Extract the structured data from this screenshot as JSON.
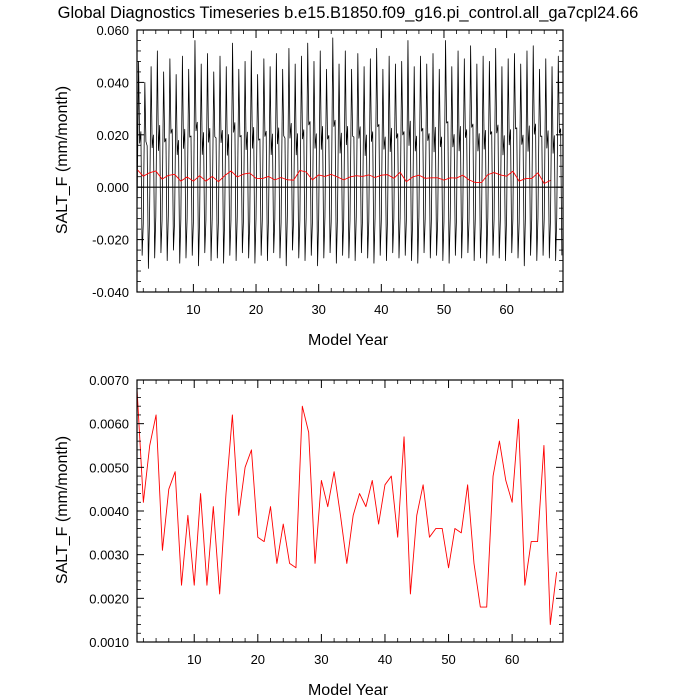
{
  "page_title": "Global Diagnostics Timeseries b.e15.B1850.f09_g16.pi_control.all_ga7cpl24.66",
  "chart_data": [
    {
      "type": "line",
      "xlabel": "Model Year",
      "ylabel": "SALT_F (mm/month)",
      "xlim": [
        1,
        69
      ],
      "ylim": [
        -0.04,
        0.06
      ],
      "x_ticks": [
        10,
        20,
        30,
        40,
        50,
        60
      ],
      "x_tick_labels": [
        "10",
        "20",
        "30",
        "40",
        "50",
        "60"
      ],
      "y_ticks": [
        -0.04,
        -0.02,
        0.0,
        0.02,
        0.04,
        0.06
      ],
      "y_tick_labels": [
        "-0.040",
        "-0.020",
        "0.000",
        "0.020",
        "0.040",
        "0.060"
      ],
      "zero_line": true,
      "series": [
        {
          "color": "#000000",
          "style": "monthly",
          "monthly_max": [
            0.048,
            0.04,
            0.046,
            0.052,
            0.044,
            0.049,
            0.043,
            0.05,
            0.045,
            0.056,
            0.047,
            0.051,
            0.044,
            0.05,
            0.046,
            0.055,
            0.045,
            0.048,
            0.052,
            0.043,
            0.049,
            0.046,
            0.051,
            0.045,
            0.053,
            0.047,
            0.05,
            0.055,
            0.048,
            0.052,
            0.045,
            0.057,
            0.047,
            0.052,
            0.045,
            0.051,
            0.046,
            0.049,
            0.053,
            0.045,
            0.05,
            0.047,
            0.048,
            0.056,
            0.046,
            0.05,
            0.047,
            0.051,
            0.045,
            0.056,
            0.046,
            0.052,
            0.049,
            0.054,
            0.047,
            0.05,
            0.048,
            0.053,
            0.046,
            0.049,
            0.051,
            0.047,
            0.052,
            0.054,
            0.045,
            0.049,
            0.046,
            0.05
          ],
          "monthly_min": [
            -0.026,
            -0.031,
            -0.027,
            -0.025,
            -0.028,
            -0.024,
            -0.029,
            -0.027,
            -0.026,
            -0.03,
            -0.025,
            -0.028,
            -0.027,
            -0.029,
            -0.026,
            -0.028,
            -0.025,
            -0.027,
            -0.029,
            -0.026,
            -0.028,
            -0.025,
            -0.027,
            -0.03,
            -0.024,
            -0.027,
            -0.028,
            -0.026,
            -0.03,
            -0.027,
            -0.025,
            -0.029,
            -0.026,
            -0.027,
            -0.028,
            -0.025,
            -0.027,
            -0.029,
            -0.026,
            -0.028,
            -0.025,
            -0.027,
            -0.026,
            -0.028,
            -0.029,
            -0.025,
            -0.027,
            -0.026,
            -0.028,
            -0.029,
            -0.026,
            -0.027,
            -0.025,
            -0.028,
            -0.027,
            -0.029,
            -0.026,
            -0.027,
            -0.028,
            -0.025,
            -0.027,
            -0.03,
            -0.026,
            -0.028,
            -0.026,
            -0.027,
            -0.028,
            -0.026
          ]
        },
        {
          "color": "#ff0000",
          "style": "annual",
          "values": [
            0.0068,
            0.0042,
            0.0055,
            0.0062,
            0.0031,
            0.0045,
            0.0049,
            0.0023,
            0.0039,
            0.0023,
            0.0044,
            0.0023,
            0.0041,
            0.0021,
            0.0044,
            0.0062,
            0.0039,
            0.005,
            0.0054,
            0.0034,
            0.0033,
            0.0041,
            0.0028,
            0.0037,
            0.0028,
            0.0027,
            0.0064,
            0.0058,
            0.0028,
            0.0047,
            0.0041,
            0.0049,
            0.0039,
            0.0028,
            0.0039,
            0.0044,
            0.0041,
            0.0047,
            0.0037,
            0.0046,
            0.0048,
            0.0034,
            0.0057,
            0.0021,
            0.0039,
            0.0046,
            0.0034,
            0.0036,
            0.0036,
            0.0027,
            0.0036,
            0.0035,
            0.0046,
            0.0028,
            0.0018,
            0.0018,
            0.0048,
            0.0056,
            0.0047,
            0.0042,
            0.0061,
            0.0023,
            0.0033,
            0.0033,
            0.0055,
            0.0014,
            0.0026
          ]
        }
      ]
    },
    {
      "type": "line",
      "xlabel": "Model Year",
      "ylabel": "SALT_F (mm/month)",
      "xlim": [
        1,
        68
      ],
      "ylim": [
        0.001,
        0.007
      ],
      "x_ticks": [
        10,
        20,
        30,
        40,
        50,
        60
      ],
      "x_tick_labels": [
        "10",
        "20",
        "30",
        "40",
        "50",
        "60"
      ],
      "y_ticks": [
        0.001,
        0.002,
        0.003,
        0.004,
        0.005,
        0.006,
        0.007
      ],
      "y_tick_labels": [
        "0.0010",
        "0.0020",
        "0.0030",
        "0.0040",
        "0.0050",
        "0.0060",
        "0.0070"
      ],
      "series": [
        {
          "color": "#ff0000",
          "x": [
            1,
            2,
            3,
            4,
            5,
            6,
            7,
            8,
            9,
            10,
            11,
            12,
            13,
            14,
            15,
            16,
            17,
            18,
            19,
            20,
            21,
            22,
            23,
            24,
            25,
            26,
            27,
            28,
            29,
            30,
            31,
            32,
            33,
            34,
            35,
            36,
            37,
            38,
            39,
            40,
            41,
            42,
            43,
            44,
            45,
            46,
            47,
            48,
            49,
            50,
            51,
            52,
            53,
            54,
            55,
            56,
            57,
            58,
            59,
            60,
            61,
            62,
            63,
            64,
            65,
            66,
            67
          ],
          "values": [
            0.0068,
            0.0042,
            0.0055,
            0.0062,
            0.0031,
            0.0045,
            0.0049,
            0.0023,
            0.0039,
            0.0023,
            0.0044,
            0.0023,
            0.0041,
            0.0021,
            0.0044,
            0.0062,
            0.0039,
            0.005,
            0.0054,
            0.0034,
            0.0033,
            0.0041,
            0.0028,
            0.0037,
            0.0028,
            0.0027,
            0.0064,
            0.0058,
            0.0028,
            0.0047,
            0.0041,
            0.0049,
            0.0039,
            0.0028,
            0.0039,
            0.0044,
            0.0041,
            0.0047,
            0.0037,
            0.0046,
            0.0048,
            0.0034,
            0.0057,
            0.0021,
            0.0039,
            0.0046,
            0.0034,
            0.0036,
            0.0036,
            0.0027,
            0.0036,
            0.0035,
            0.0046,
            0.0028,
            0.0018,
            0.0018,
            0.0048,
            0.0056,
            0.0047,
            0.0042,
            0.0061,
            0.0023,
            0.0033,
            0.0033,
            0.0055,
            0.0014,
            0.0026
          ]
        }
      ]
    }
  ]
}
